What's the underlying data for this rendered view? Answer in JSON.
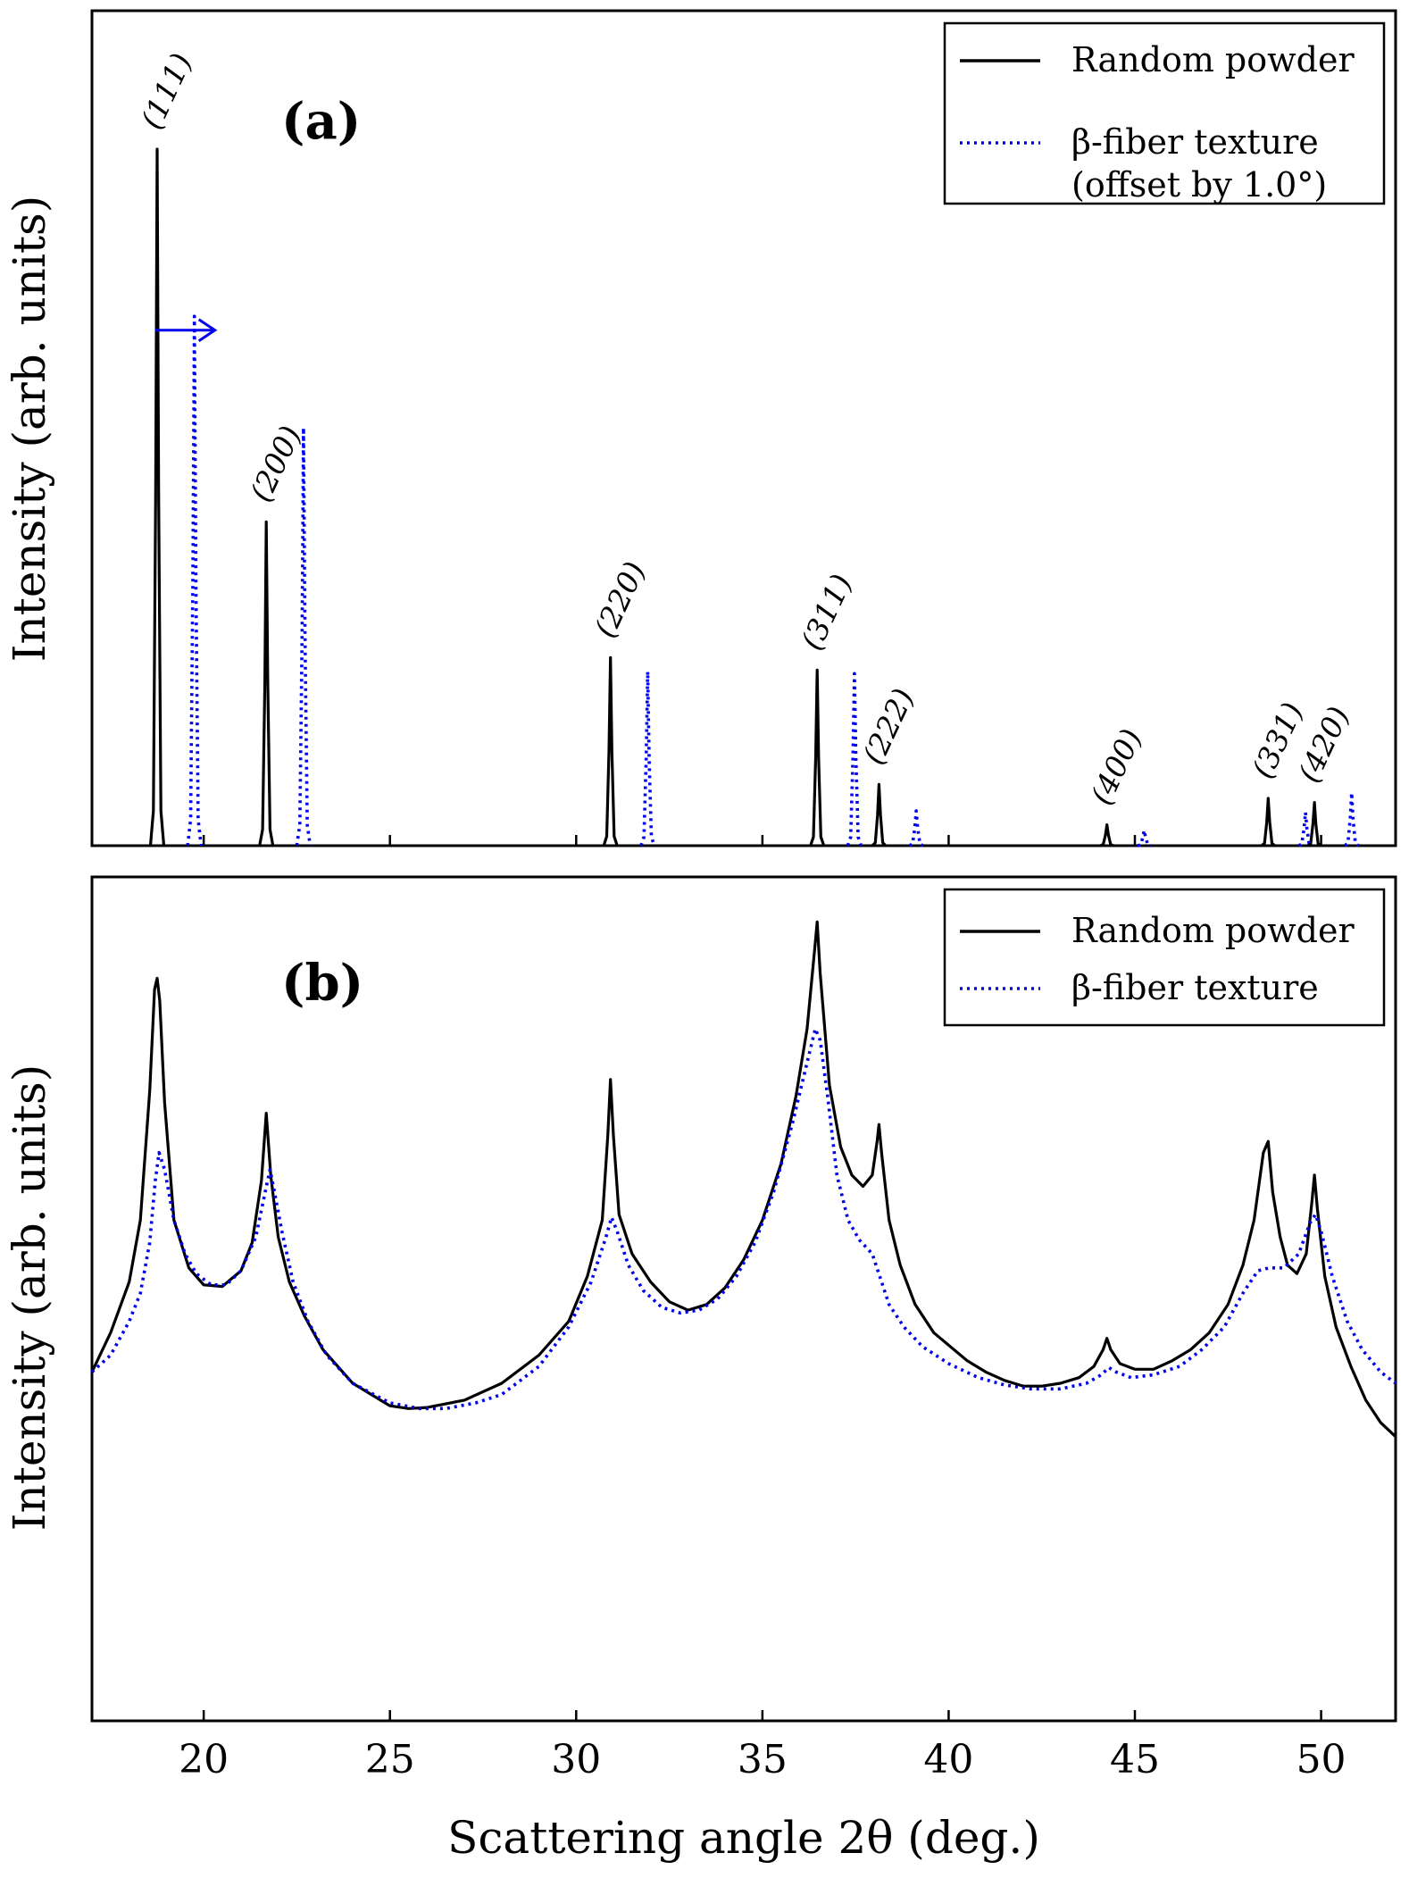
{
  "chart_data": [
    {
      "panel": "a",
      "type": "line",
      "panel_label": "(a)",
      "xlabel": "",
      "ylabel": "Intensity (arb. units)",
      "xlim": [
        17,
        52
      ],
      "y_ticks_visible": false,
      "grid": false,
      "legend_position": "top-right",
      "legend": [
        {
          "label": "Random powder",
          "lines": [
            "Random powder"
          ],
          "style": "solid",
          "color": "#000000"
        },
        {
          "label": "β-fiber texture (offset by 1.0°)",
          "lines": [
            "β-fiber texture",
            "(offset by 1.0°)"
          ],
          "style": "dotted",
          "color": "#0000ee"
        }
      ],
      "offset_arrow": {
        "from_x": 18.7,
        "to_x": 20.3,
        "y": 0.74,
        "color": "#0000ee"
      },
      "series": [
        {
          "name": "Random powder",
          "style": "solid",
          "color": "#000000",
          "peaks": [
            {
              "x": 18.75,
              "y": 1.0
            },
            {
              "x": 21.68,
              "y": 0.465
            },
            {
              "x": 30.92,
              "y": 0.27
            },
            {
              "x": 36.47,
              "y": 0.252
            },
            {
              "x": 38.13,
              "y": 0.088
            },
            {
              "x": 44.25,
              "y": 0.03
            },
            {
              "x": 48.58,
              "y": 0.068
            },
            {
              "x": 49.82,
              "y": 0.062
            }
          ]
        },
        {
          "name": "β-fiber texture",
          "style": "dotted",
          "color": "#0000ee",
          "peaks": [
            {
              "x": 19.75,
              "y": 0.76
            },
            {
              "x": 22.68,
              "y": 0.6
            },
            {
              "x": 31.92,
              "y": 0.25
            },
            {
              "x": 37.47,
              "y": 0.247
            },
            {
              "x": 39.13,
              "y": 0.05
            },
            {
              "x": 45.25,
              "y": 0.022
            },
            {
              "x": 49.58,
              "y": 0.048
            },
            {
              "x": 50.82,
              "y": 0.076
            }
          ]
        }
      ],
      "annotations": [
        {
          "text": "(111)",
          "x": 18.75
        },
        {
          "text": "(200)",
          "x": 21.68
        },
        {
          "text": "(220)",
          "x": 30.92
        },
        {
          "text": "(311)",
          "x": 36.47
        },
        {
          "text": "(222)",
          "x": 38.13
        },
        {
          "text": "(400)",
          "x": 44.25
        },
        {
          "text": "(331)",
          "x": 48.58
        },
        {
          "text": "(420)",
          "x": 49.82
        }
      ]
    },
    {
      "panel": "b",
      "type": "line",
      "panel_label": "(b)",
      "xlabel": "Scattering angle 2θ (deg.)",
      "ylabel": "Intensity (arb. units)",
      "xlim": [
        17,
        52
      ],
      "xticks": [
        20,
        25,
        30,
        35,
        40,
        45,
        50
      ],
      "y_ticks_visible": false,
      "grid": false,
      "legend_position": "top-right",
      "legend": [
        {
          "label": "Random powder",
          "lines": [
            "Random powder"
          ],
          "style": "solid",
          "color": "#000000"
        },
        {
          "label": "β-fiber texture",
          "lines": [
            "β-fiber texture"
          ],
          "style": "dotted",
          "color": "#0000ee"
        }
      ],
      "series": [
        {
          "name": "Random powder",
          "style": "solid",
          "color": "#000000",
          "x": [
            17.0,
            17.5,
            18.0,
            18.3,
            18.55,
            18.68,
            18.75,
            18.82,
            18.95,
            19.2,
            19.6,
            20.0,
            20.5,
            21.0,
            21.3,
            21.55,
            21.68,
            21.8,
            22.0,
            22.3,
            22.7,
            23.2,
            24.0,
            25.0,
            25.5,
            26.0,
            27.0,
            28.0,
            29.0,
            29.8,
            30.3,
            30.7,
            30.85,
            30.92,
            31.0,
            31.15,
            31.5,
            32.0,
            32.5,
            33.0,
            33.5,
            34.0,
            34.5,
            35.0,
            35.5,
            35.9,
            36.2,
            36.4,
            36.47,
            36.55,
            36.8,
            37.1,
            37.4,
            37.7,
            37.95,
            38.08,
            38.13,
            38.2,
            38.4,
            38.7,
            39.1,
            39.6,
            40.5,
            41.0,
            41.5,
            42.0,
            42.5,
            43.0,
            43.5,
            43.9,
            44.15,
            44.25,
            44.35,
            44.6,
            45.0,
            45.5,
            46.0,
            46.5,
            47.0,
            47.5,
            47.9,
            48.2,
            48.45,
            48.58,
            48.7,
            48.9,
            49.1,
            49.35,
            49.6,
            49.75,
            49.82,
            49.9,
            50.1,
            50.4,
            50.8,
            51.2,
            51.6,
            52.0
          ],
          "y": [
            0.72,
            0.79,
            0.88,
            0.99,
            1.22,
            1.4,
            1.42,
            1.38,
            1.2,
            0.99,
            0.905,
            0.875,
            0.872,
            0.9,
            0.95,
            1.06,
            1.18,
            1.07,
            0.96,
            0.88,
            0.82,
            0.76,
            0.7,
            0.66,
            0.655,
            0.657,
            0.67,
            0.7,
            0.75,
            0.81,
            0.89,
            0.99,
            1.14,
            1.24,
            1.14,
            1.0,
            0.93,
            0.88,
            0.845,
            0.83,
            0.84,
            0.87,
            0.92,
            0.99,
            1.09,
            1.21,
            1.33,
            1.47,
            1.52,
            1.43,
            1.23,
            1.12,
            1.07,
            1.05,
            1.07,
            1.13,
            1.16,
            1.11,
            0.99,
            0.91,
            0.84,
            0.79,
            0.74,
            0.72,
            0.705,
            0.695,
            0.695,
            0.7,
            0.71,
            0.73,
            0.76,
            0.78,
            0.76,
            0.735,
            0.725,
            0.725,
            0.74,
            0.76,
            0.79,
            0.84,
            0.91,
            0.99,
            1.11,
            1.13,
            1.04,
            0.96,
            0.91,
            0.895,
            0.93,
            1.02,
            1.07,
            1.01,
            0.89,
            0.8,
            0.73,
            0.67,
            0.63,
            0.605
          ]
        },
        {
          "name": "β-fiber texture",
          "style": "dotted",
          "color": "#0000ee",
          "x": [
            17.0,
            17.5,
            18.0,
            18.3,
            18.55,
            18.7,
            18.8,
            18.95,
            19.2,
            19.5,
            19.8,
            20.2,
            20.6,
            21.0,
            21.4,
            21.65,
            21.78,
            21.9,
            22.1,
            22.4,
            22.8,
            23.3,
            24.0,
            25.0,
            25.8,
            26.5,
            27.3,
            28.0,
            29.0,
            29.8,
            30.4,
            30.8,
            30.95,
            31.1,
            31.4,
            31.8,
            32.3,
            32.8,
            33.3,
            33.8,
            34.3,
            34.8,
            35.3,
            35.8,
            36.2,
            36.42,
            36.55,
            36.75,
            37.0,
            37.3,
            37.6,
            37.95,
            38.15,
            38.4,
            38.8,
            39.3,
            40.0,
            40.8,
            41.5,
            42.2,
            43.0,
            43.7,
            44.1,
            44.3,
            44.5,
            44.9,
            45.5,
            46.2,
            46.8,
            47.4,
            47.9,
            48.3,
            48.6,
            49.0,
            49.4,
            49.7,
            49.85,
            50.0,
            50.3,
            50.7,
            51.1,
            51.6,
            52.0
          ],
          "y": [
            0.72,
            0.75,
            0.81,
            0.86,
            0.95,
            1.06,
            1.11,
            1.08,
            0.99,
            0.93,
            0.895,
            0.875,
            0.875,
            0.9,
            0.96,
            1.04,
            1.08,
            1.04,
            0.97,
            0.88,
            0.81,
            0.75,
            0.7,
            0.665,
            0.655,
            0.655,
            0.665,
            0.68,
            0.73,
            0.8,
            0.88,
            0.96,
            0.995,
            0.97,
            0.91,
            0.865,
            0.835,
            0.825,
            0.83,
            0.85,
            0.89,
            0.95,
            1.04,
            1.16,
            1.27,
            1.33,
            1.31,
            1.21,
            1.07,
            0.99,
            0.955,
            0.93,
            0.89,
            0.84,
            0.8,
            0.765,
            0.735,
            0.71,
            0.697,
            0.69,
            0.69,
            0.7,
            0.715,
            0.728,
            0.72,
            0.71,
            0.715,
            0.73,
            0.76,
            0.8,
            0.86,
            0.9,
            0.905,
            0.905,
            0.93,
            0.985,
            1.0,
            0.97,
            0.89,
            0.81,
            0.76,
            0.72,
            0.7
          ]
        }
      ]
    }
  ]
}
